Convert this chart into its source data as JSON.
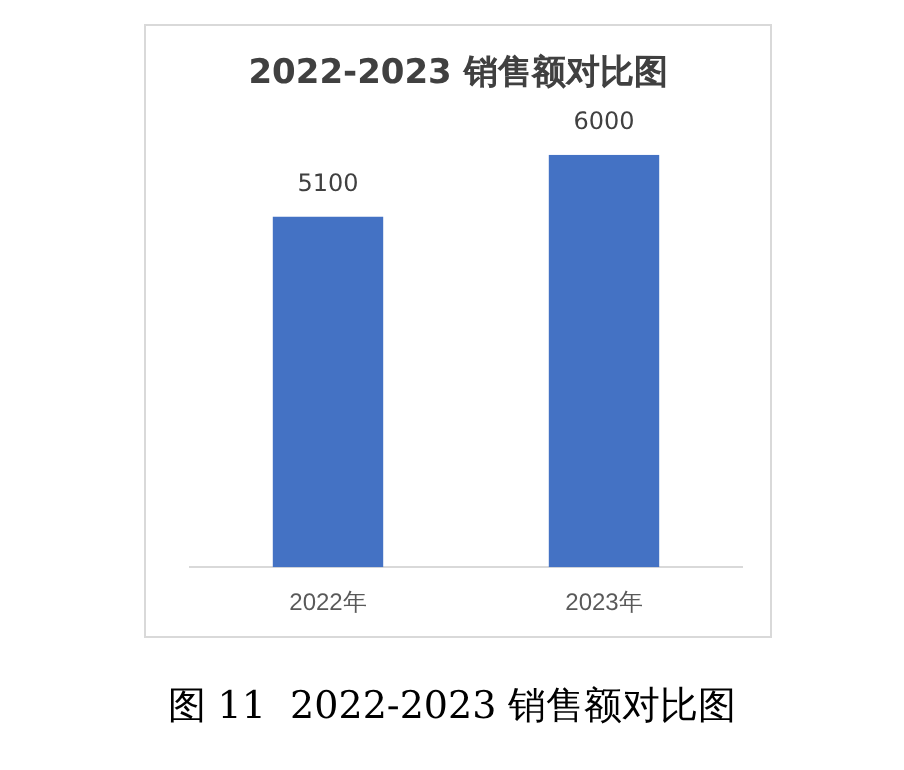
{
  "chart_data": {
    "type": "bar",
    "title": "2022-2023 销售额对比图",
    "categories": [
      "2022年",
      "2023年"
    ],
    "values": [
      5100,
      6000
    ],
    "color": "#4472c4",
    "data_labels": true,
    "grid": false,
    "legend": false,
    "tick_labels": "x",
    "annotations": [
      "图 11  2022-2023 销售额对比图"
    ]
  }
}
